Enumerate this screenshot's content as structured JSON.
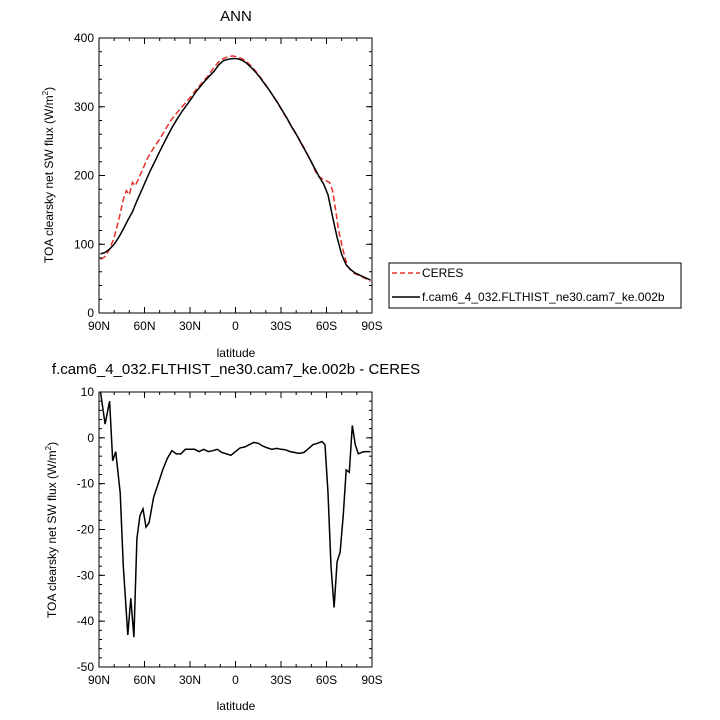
{
  "chart_data": [
    {
      "type": "line",
      "title": "ANN",
      "xlabel": "latitude",
      "ylabel": "TOA clearsky net SW flux (W/m",
      "ylabel_sup": "2",
      "ylabel_end": ")",
      "xlim": [
        90,
        -90
      ],
      "ylim": [
        0,
        400
      ],
      "x_ticks": [
        90,
        60,
        30,
        0,
        -30,
        -60,
        -90
      ],
      "x_tick_labels": [
        "90N",
        "60N",
        "30N",
        "0",
        "30S",
        "60S",
        "90S"
      ],
      "y_ticks": [
        0,
        100,
        200,
        300,
        400
      ],
      "y_tick_labels": [
        "0",
        "100",
        "200",
        "300",
        "400"
      ],
      "legend": "right",
      "series": [
        {
          "name": "CERES",
          "color": "#e8302c",
          "dash": "dashed",
          "x": [
            89,
            86,
            83,
            80,
            77,
            74,
            72,
            70,
            68,
            66,
            62,
            58,
            54,
            50,
            46,
            42,
            38,
            34,
            30,
            26,
            22,
            18,
            14,
            10,
            6,
            2,
            -2,
            -6,
            -10,
            -14,
            -18,
            -22,
            -26,
            -30,
            -34,
            -38,
            -42,
            -46,
            -50,
            -54,
            -58,
            -62,
            -64,
            -66,
            -68,
            -70,
            -72,
            -74,
            -78,
            -82,
            -86,
            -89
          ],
          "y": [
            78,
            82,
            93,
            110,
            135,
            165,
            178,
            172,
            190,
            185,
            205,
            225,
            240,
            253,
            268,
            282,
            293,
            303,
            313,
            325,
            335,
            345,
            358,
            368,
            372,
            374,
            372,
            368,
            360,
            350,
            338,
            325,
            312,
            297,
            282,
            268,
            253,
            237,
            220,
            200,
            194,
            190,
            178,
            150,
            120,
            100,
            82,
            67,
            58,
            54,
            50,
            46
          ]
        },
        {
          "name": "f.cam6_4_032.FLTHIST_ne30.cam7_ke.002b",
          "color": "#000000",
          "dash": "solid",
          "x": [
            89,
            86,
            83,
            80,
            77,
            74,
            71,
            68,
            65,
            62,
            59,
            56,
            53,
            50,
            47,
            44,
            41,
            38,
            35,
            32,
            29,
            26,
            23,
            20,
            17,
            14,
            11,
            8,
            5,
            2,
            -1,
            -4,
            -7,
            -10,
            -13,
            -16,
            -19,
            -22,
            -25,
            -28,
            -31,
            -34,
            -37,
            -40,
            -43,
            -46,
            -49,
            -52,
            -55,
            -58,
            -61,
            -64,
            -67,
            -70,
            -73,
            -76,
            -79,
            -82,
            -85,
            -89
          ],
          "y": [
            86,
            88,
            93,
            100,
            110,
            122,
            135,
            147,
            163,
            178,
            193,
            208,
            221,
            235,
            248,
            261,
            273,
            284,
            294,
            303,
            312,
            322,
            330,
            338,
            345,
            352,
            361,
            367,
            369,
            370,
            370,
            368,
            364,
            358,
            351,
            343,
            334,
            325,
            315,
            305,
            294,
            283,
            271,
            260,
            248,
            236,
            224,
            211,
            199,
            188,
            172,
            140,
            110,
            85,
            70,
            63,
            58,
            55,
            52,
            48
          ]
        }
      ]
    },
    {
      "type": "line",
      "title": "f.cam6_4_032.FLTHIST_ne30.cam7_ke.002b - CERES",
      "xlabel": "latitude",
      "ylabel": "TOA clearsky net SW flux (W/m",
      "ylabel_sup": "2",
      "ylabel_end": ")",
      "xlim": [
        90,
        -90
      ],
      "ylim": [
        -50,
        10
      ],
      "x_ticks": [
        90,
        60,
        30,
        0,
        -30,
        -60,
        -90
      ],
      "x_tick_labels": [
        "90N",
        "60N",
        "30N",
        "0",
        "30S",
        "60S",
        "90S"
      ],
      "y_ticks": [
        -50,
        -40,
        -30,
        -20,
        -10,
        0,
        10
      ],
      "y_tick_labels": [
        "-50",
        "-40",
        "-30",
        "-20",
        "-10",
        "0",
        "10"
      ],
      "series": [
        {
          "color": "#000000",
          "dash": "solid",
          "x": [
            89,
            86,
            83,
            81,
            79,
            76,
            74,
            71,
            69,
            67,
            65,
            63,
            61,
            59,
            57,
            54,
            51,
            48,
            45,
            42,
            39,
            36,
            33,
            30,
            27,
            24,
            21,
            18,
            15,
            12,
            9,
            6,
            3,
            0,
            -3,
            -6,
            -9,
            -12,
            -15,
            -18,
            -21,
            -24,
            -27,
            -30,
            -33,
            -36,
            -39,
            -42,
            -45,
            -48,
            -51,
            -54,
            -57,
            -59,
            -61,
            -63,
            -65,
            -67,
            -69,
            -71,
            -73,
            -75,
            -77,
            -79,
            -81,
            -83,
            -85,
            -87,
            -89
          ],
          "y": [
            10,
            3,
            8,
            -5,
            -3,
            -12,
            -28,
            -43,
            -35,
            -43.5,
            -22,
            -17,
            -15.5,
            -19.5,
            -18.5,
            -13,
            -10,
            -7,
            -4.5,
            -2.8,
            -3.5,
            -3.5,
            -2.5,
            -2.5,
            -2.5,
            -3,
            -2.5,
            -3,
            -2.8,
            -2.5,
            -3.2,
            -3.5,
            -3.8,
            -3,
            -2.2,
            -2,
            -1.5,
            -1,
            -1.2,
            -1.8,
            -2.2,
            -2.5,
            -2.3,
            -2.5,
            -2.6,
            -3,
            -3.2,
            -3.4,
            -3.2,
            -2.4,
            -1.5,
            -1.2,
            -0.8,
            -1.5,
            -12,
            -28,
            -37,
            -27,
            -25,
            -17,
            -7,
            -7.5,
            2.7,
            -1.5,
            -3.5,
            -3.2,
            -3,
            -3,
            -3
          ]
        }
      ]
    }
  ]
}
